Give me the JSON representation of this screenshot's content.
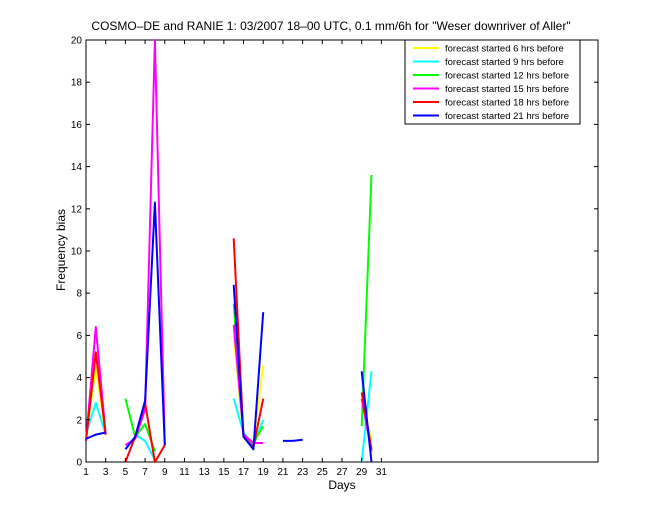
{
  "chart_data": {
    "type": "line",
    "title": "COSMO–DE and RANIE 1: 03/2007 18–00 UTC, 0.1 mm/6h for \"Weser downriver of Aller\"",
    "xlabel": "Days",
    "ylabel": "Frequency bias",
    "xlim": [
      1,
      53
    ],
    "ylim": [
      0,
      20
    ],
    "xticks": [
      1,
      3,
      5,
      7,
      9,
      11,
      13,
      15,
      17,
      19,
      21,
      23,
      25,
      27,
      29,
      31
    ],
    "yticks": [
      0,
      2,
      4,
      6,
      8,
      10,
      12,
      14,
      16,
      18,
      20
    ],
    "grid": false,
    "legend_position": "top-right",
    "series": [
      {
        "name": "forecast started 6 hrs before",
        "color": "#ffff00",
        "segments": [
          [
            [
              1,
              1.1
            ],
            [
              2,
              4.5
            ],
            [
              3,
              1.3
            ]
          ],
          [
            [
              16,
              6.0
            ],
            [
              17,
              1.2
            ],
            [
              18,
              0.9
            ],
            [
              19,
              4.6
            ]
          ],
          [
            [
              29,
              3.0
            ],
            [
              30,
              1.0
            ]
          ]
        ]
      },
      {
        "name": "forecast started 9 hrs before",
        "color": "#00ffff",
        "segments": [
          [
            [
              1,
              1.3
            ],
            [
              2,
              2.8
            ],
            [
              3,
              1.3
            ]
          ],
          [
            [
              6,
              1.3
            ],
            [
              7,
              1.0
            ],
            [
              8,
              0.1
            ]
          ],
          [
            [
              16,
              3.0
            ],
            [
              17,
              1.4
            ],
            [
              18,
              0.8
            ],
            [
              19,
              2.0
            ]
          ],
          [
            [
              29,
              0.0
            ],
            [
              30,
              4.3
            ]
          ]
        ]
      },
      {
        "name": "forecast started 12 hrs before",
        "color": "#00ff00",
        "segments": [
          [
            [
              5,
              3.0
            ],
            [
              6,
              1.2
            ],
            [
              7,
              1.8
            ],
            [
              8,
              0.5
            ]
          ],
          [
            [
              16,
              7.5
            ],
            [
              17,
              1.3
            ],
            [
              18,
              0.9
            ],
            [
              19,
              1.7
            ]
          ],
          [
            [
              29,
              1.7
            ],
            [
              30,
              13.6
            ]
          ]
        ]
      },
      {
        "name": "forecast started 15 hrs before",
        "color": "#ff00ff",
        "segments": [
          [
            [
              1,
              1.0
            ],
            [
              2,
              6.4
            ],
            [
              3,
              1.3
            ]
          ],
          [
            [
              5,
              0.8
            ],
            [
              6,
              1.1
            ],
            [
              7,
              2.5
            ],
            [
              8,
              20.0
            ],
            [
              9,
              0.8
            ]
          ],
          [
            [
              16,
              6.5
            ],
            [
              17,
              1.3
            ],
            [
              18,
              0.9
            ],
            [
              19,
              0.9
            ]
          ],
          [
            [
              29,
              3.0
            ],
            [
              30,
              0.5
            ]
          ]
        ]
      },
      {
        "name": "forecast started 18 hrs before",
        "color": "#ff0000",
        "segments": [
          [
            [
              1,
              1.0
            ],
            [
              2,
              5.2
            ],
            [
              3,
              1.3
            ]
          ],
          [
            [
              5,
              0.0
            ],
            [
              6,
              1.2
            ],
            [
              7,
              2.8
            ],
            [
              8,
              0.0
            ],
            [
              9,
              0.8
            ]
          ],
          [
            [
              16,
              10.6
            ],
            [
              17,
              1.2
            ],
            [
              18,
              0.7
            ],
            [
              19,
              3.0
            ]
          ],
          [
            [
              29,
              3.3
            ],
            [
              30,
              0.6
            ]
          ]
        ]
      },
      {
        "name": "forecast started 21 hrs before",
        "color": "#0000ff",
        "segments": [
          [
            [
              1,
              1.1
            ],
            [
              2,
              1.3
            ],
            [
              3,
              1.4
            ]
          ],
          [
            [
              5,
              0.6
            ],
            [
              6,
              1.2
            ],
            [
              7,
              2.9
            ],
            [
              8,
              12.3
            ],
            [
              9,
              0.8
            ]
          ],
          [
            [
              16,
              8.4
            ],
            [
              17,
              1.2
            ],
            [
              18,
              0.6
            ],
            [
              19,
              7.1
            ]
          ],
          [
            [
              21,
              1.0
            ],
            [
              22,
              1.0
            ],
            [
              23,
              1.05
            ]
          ],
          [
            [
              29,
              4.3
            ],
            [
              30,
              0.0
            ]
          ]
        ]
      }
    ]
  }
}
